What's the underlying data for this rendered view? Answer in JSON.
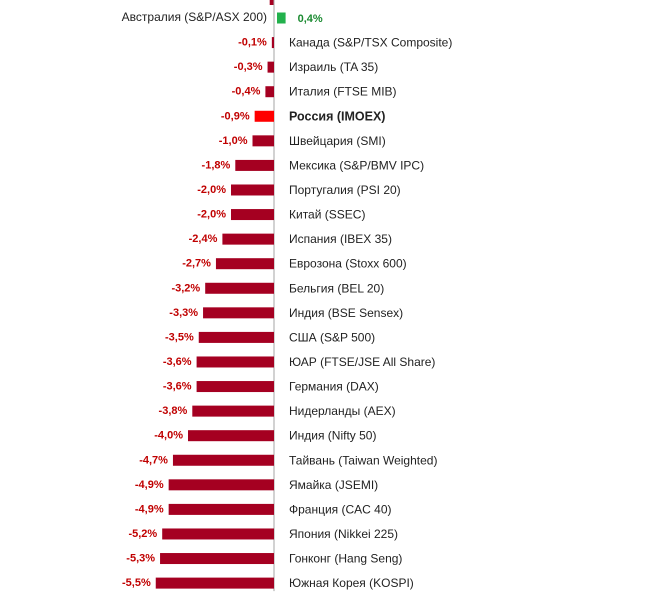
{
  "colors": {
    "negative": "#a50021",
    "highlight": "#ff0000",
    "positive": "#22b14c",
    "negative_label": "#c00000",
    "positive_label": "#1a8a30",
    "axis": "#a6a6a6"
  },
  "chart_data": {
    "type": "bar",
    "orientation": "horizontal",
    "title": "",
    "xlabel": "",
    "ylabel": "",
    "highlight_category": "Россия (IMOEX)",
    "categories": [
      "Австралия (S&P/ASX 200)",
      "Канада (S&P/TSX Composite)",
      "Израиль (TA 35)",
      "Италия (FTSE MIB)",
      "Россия (IMOEX)",
      "Швейцария (SMI)",
      "Мексика (S&P/BMV IPC)",
      "Португалия (PSI 20)",
      "Китай (SSEC)",
      "Испания (IBEX 35)",
      "Еврозона (Stoxx 600)",
      "Бельгия (BEL 20)",
      "Индия (BSE Sensex)",
      "США (S&P 500)",
      "ЮАР (FTSE/JSE All Share)",
      "Германия (DAX)",
      "Нидерланды (AEX)",
      "Индия (Nifty 50)",
      "Тайвань (Taiwan Weighted)",
      "Ямайка (JSEMI)",
      "Франция (CAC 40)",
      "Япония (Nikkei 225)",
      "Гонконг (Hang Seng)",
      "Южная Корея (KOSPI)"
    ],
    "values": [
      0.4,
      -0.1,
      -0.3,
      -0.4,
      -0.9,
      -1.0,
      -1.8,
      -2.0,
      -2.0,
      -2.4,
      -2.7,
      -3.2,
      -3.3,
      -3.5,
      -3.6,
      -3.6,
      -3.8,
      -4.0,
      -4.7,
      -4.9,
      -4.9,
      -5.2,
      -5.3,
      -5.5
    ],
    "value_labels": [
      "0,4%",
      "-0,1%",
      "-0,3%",
      "-0,4%",
      "-0,9%",
      "-1,0%",
      "-1,8%",
      "-2,0%",
      "-2,0%",
      "-2,4%",
      "-2,7%",
      "-3,2%",
      "-3,3%",
      "-3,5%",
      "-3,6%",
      "-3,6%",
      "-3,8%",
      "-4,0%",
      "-4,7%",
      "-4,9%",
      "-4,9%",
      "-5,2%",
      "-5,3%",
      "-5,5%"
    ],
    "partial_top_row": {
      "value": -0.2
    }
  }
}
